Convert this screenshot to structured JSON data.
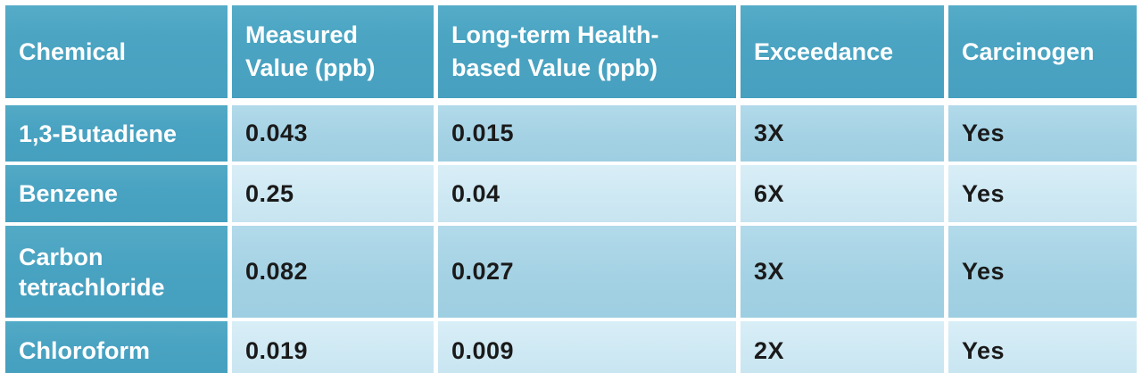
{
  "table": {
    "columns": [
      {
        "label": "Chemical"
      },
      {
        "label": "Measured Value (ppb)"
      },
      {
        "label": "Long-term Health-based Value (ppb)"
      },
      {
        "label": "Exceedance"
      },
      {
        "label": "Carcinogen"
      }
    ],
    "rows": [
      {
        "cells": [
          "1,3-Butadiene",
          "0.043",
          "0.015",
          "3X",
          "Yes"
        ]
      },
      {
        "cells": [
          "Benzene",
          "0.25",
          "0.04",
          "6X",
          "Yes"
        ]
      },
      {
        "cells": [
          "Carbon tetrachloride",
          "0.082",
          "0.027",
          "3X",
          "Yes"
        ]
      },
      {
        "cells": [
          "Chloroform",
          "0.019",
          "0.009",
          "2X",
          "Yes"
        ]
      }
    ]
  },
  "colors": {
    "header_teal": "#48a2c1",
    "row_odd_blue": "#a4d2e4",
    "row_even_blue": "#cde8f3",
    "header_text": "#ffffff",
    "body_text": "#1a1a1a",
    "gap_white": "#ffffff"
  },
  "chart_data": {
    "type": "table",
    "title": "",
    "columns": [
      "Chemical",
      "Measured Value (ppb)",
      "Long-term Health-based Value (ppb)",
      "Exceedance",
      "Carcinogen"
    ],
    "rows": [
      [
        "1,3-Butadiene",
        0.043,
        0.015,
        "3X",
        "Yes"
      ],
      [
        "Benzene",
        0.25,
        0.04,
        "6X",
        "Yes"
      ],
      [
        "Carbon tetrachloride",
        0.082,
        0.027,
        "3X",
        "Yes"
      ],
      [
        "Chloroform",
        0.019,
        0.009,
        "2X",
        "Yes"
      ]
    ]
  }
}
